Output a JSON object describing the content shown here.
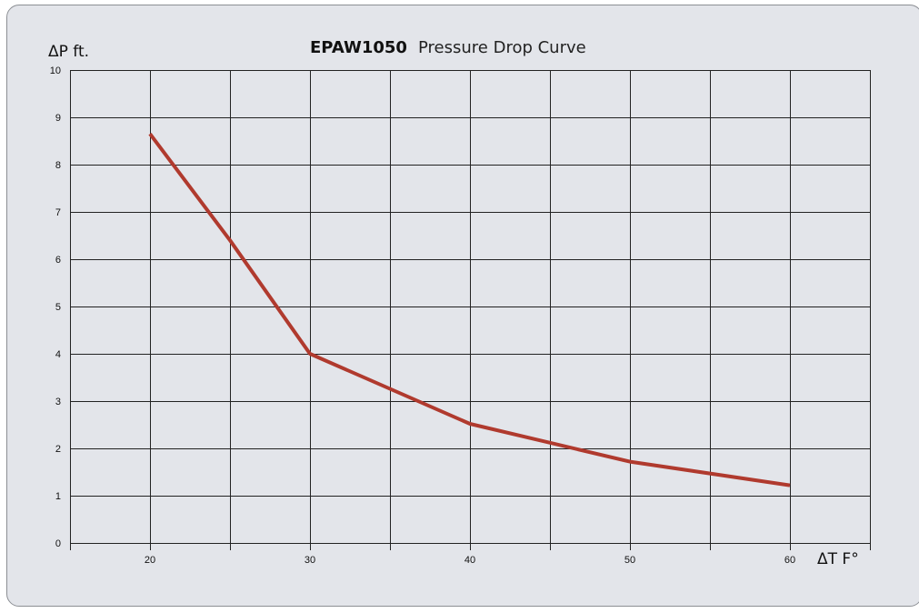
{
  "chart_data": {
    "type": "line",
    "title": "EPAW1050",
    "subtitle": "Pressure Drop Curve",
    "xlabel": "ΔT F°",
    "ylabel": "ΔP ft.",
    "xlim": [
      15,
      65
    ],
    "ylim": [
      0,
      10
    ],
    "x_ticks": [
      20,
      30,
      40,
      50,
      60
    ],
    "y_ticks": [
      0,
      1,
      2,
      3,
      4,
      5,
      6,
      7,
      8,
      9,
      10
    ],
    "grid": true,
    "legend": "none",
    "series": [
      {
        "color": "#b03a2e",
        "points": [
          {
            "x": 20,
            "y": 8.65
          },
          {
            "x": 25,
            "y": 6.4
          },
          {
            "x": 30,
            "y": 4.0
          },
          {
            "x": 40,
            "y": 2.52
          },
          {
            "x": 50,
            "y": 1.72
          },
          {
            "x": 60,
            "y": 1.22
          }
        ]
      }
    ]
  }
}
